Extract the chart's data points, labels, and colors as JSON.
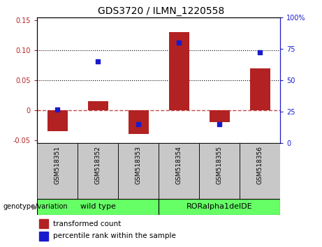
{
  "title": "GDS3720 / ILMN_1220558",
  "samples": [
    "GSM518351",
    "GSM518352",
    "GSM518353",
    "GSM518354",
    "GSM518355",
    "GSM518356"
  ],
  "transformed_count": [
    -0.035,
    0.015,
    -0.04,
    0.13,
    -0.02,
    0.07
  ],
  "percentile_rank": [
    27,
    65,
    15,
    80,
    15,
    72
  ],
  "bar_color": "#b22222",
  "scatter_color": "#1a1acd",
  "ylim_left": [
    -0.055,
    0.155
  ],
  "ylim_right": [
    0,
    100
  ],
  "yticks_left": [
    -0.05,
    0.0,
    0.05,
    0.1,
    0.15
  ],
  "yticks_right": [
    0,
    25,
    50,
    75,
    100
  ],
  "hline_y": 0.0,
  "dotted_lines": [
    0.05,
    0.1
  ],
  "genotype_labels": [
    "wild type",
    "RORalpha1delDE"
  ],
  "genotype_color": "#66ff66",
  "legend_bar_label": "transformed count",
  "legend_scatter_label": "percentile rank within the sample",
  "genotype_row_label": "genotype/variation",
  "title_fontsize": 10,
  "tick_fontsize": 7,
  "legend_fontsize": 7.5,
  "bar_width": 0.5,
  "sample_label_fontsize": 6.5,
  "genotype_fontsize": 8
}
